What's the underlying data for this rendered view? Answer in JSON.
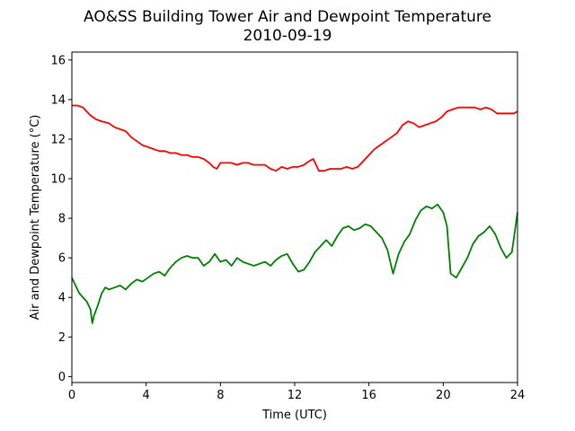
{
  "chart_data": {
    "type": "line",
    "title": "AO&SS Building Tower Air and Dewpoint Temperature",
    "subtitle": "2010-09-19",
    "xlabel": "Time (UTC)",
    "ylabel": "Air and Dewpoint Temperature (°C)",
    "xlim": [
      0,
      24
    ],
    "ylim": [
      -0.3,
      16.4
    ],
    "xticks": [
      0,
      4,
      8,
      12,
      16,
      20,
      24
    ],
    "yticks": [
      0,
      2,
      4,
      6,
      8,
      10,
      12,
      14,
      16
    ],
    "grid": false,
    "series": [
      {
        "color": "#ff0000",
        "x": [
          0,
          0.3,
          0.6,
          0.8,
          1.0,
          1.3,
          1.6,
          2.0,
          2.3,
          2.6,
          2.9,
          3.2,
          3.5,
          3.8,
          4.1,
          4.4,
          4.7,
          5.0,
          5.3,
          5.6,
          5.9,
          6.2,
          6.5,
          6.8,
          7.1,
          7.4,
          7.6,
          7.8,
          8.0,
          8.3,
          8.6,
          8.9,
          9.2,
          9.5,
          9.8,
          10.1,
          10.4,
          10.7,
          11.0,
          11.3,
          11.6,
          11.9,
          12.2,
          12.5,
          12.8,
          13.0,
          13.3,
          13.6,
          13.9,
          14.2,
          14.5,
          14.8,
          15.1,
          15.4,
          15.7,
          16.0,
          16.3,
          16.6,
          16.9,
          17.2,
          17.5,
          17.8,
          18.1,
          18.4,
          18.7,
          19.0,
          19.3,
          19.6,
          19.9,
          20.2,
          20.5,
          20.8,
          21.1,
          21.4,
          21.7,
          22.0,
          22.3,
          22.6,
          22.9,
          23.2,
          23.5,
          23.8,
          24.0
        ],
        "y": [
          13.7,
          13.7,
          13.6,
          13.4,
          13.2,
          13.0,
          12.9,
          12.8,
          12.6,
          12.5,
          12.4,
          12.1,
          11.9,
          11.7,
          11.6,
          11.5,
          11.4,
          11.4,
          11.3,
          11.3,
          11.2,
          11.2,
          11.1,
          11.1,
          11.0,
          10.8,
          10.6,
          10.5,
          10.8,
          10.8,
          10.8,
          10.7,
          10.8,
          10.8,
          10.7,
          10.7,
          10.7,
          10.5,
          10.4,
          10.6,
          10.5,
          10.6,
          10.6,
          10.7,
          10.9,
          11.0,
          10.4,
          10.4,
          10.5,
          10.5,
          10.5,
          10.6,
          10.5,
          10.6,
          10.9,
          11.2,
          11.5,
          11.7,
          11.9,
          12.1,
          12.3,
          12.7,
          12.9,
          12.8,
          12.6,
          12.7,
          12.8,
          12.9,
          13.1,
          13.4,
          13.5,
          13.6,
          13.6,
          13.6,
          13.6,
          13.5,
          13.6,
          13.5,
          13.3,
          13.3,
          13.3,
          13.3,
          13.4
        ]
      },
      {
        "color": "#008000",
        "x": [
          0,
          0.2,
          0.4,
          0.6,
          0.8,
          1.0,
          1.1,
          1.2,
          1.4,
          1.6,
          1.8,
          2.0,
          2.3,
          2.6,
          2.9,
          3.2,
          3.5,
          3.8,
          4.1,
          4.4,
          4.7,
          5.0,
          5.3,
          5.6,
          5.9,
          6.2,
          6.5,
          6.8,
          7.1,
          7.4,
          7.7,
          8.0,
          8.3,
          8.6,
          8.9,
          9.2,
          9.5,
          9.8,
          10.1,
          10.4,
          10.7,
          11.0,
          11.3,
          11.6,
          11.9,
          12.2,
          12.5,
          12.8,
          13.1,
          13.4,
          13.7,
          14.0,
          14.3,
          14.6,
          14.9,
          15.2,
          15.5,
          15.8,
          16.1,
          16.4,
          16.7,
          17.0,
          17.3,
          17.6,
          17.9,
          18.2,
          18.5,
          18.8,
          19.1,
          19.4,
          19.7,
          20.0,
          20.2,
          20.4,
          20.7,
          21.0,
          21.3,
          21.6,
          21.9,
          22.2,
          22.5,
          22.8,
          23.1,
          23.4,
          23.7,
          24.0
        ],
        "y": [
          5.0,
          4.6,
          4.2,
          4.0,
          3.8,
          3.4,
          2.7,
          3.1,
          3.6,
          4.2,
          4.5,
          4.4,
          4.5,
          4.6,
          4.4,
          4.7,
          4.9,
          4.8,
          5.0,
          5.2,
          5.3,
          5.1,
          5.5,
          5.8,
          6.0,
          6.1,
          6.0,
          6.0,
          5.6,
          5.8,
          6.2,
          5.8,
          5.9,
          5.6,
          6.0,
          5.8,
          5.7,
          5.6,
          5.7,
          5.8,
          5.6,
          5.9,
          6.1,
          6.2,
          5.7,
          5.3,
          5.4,
          5.8,
          6.3,
          6.6,
          6.9,
          6.6,
          7.1,
          7.5,
          7.6,
          7.4,
          7.5,
          7.7,
          7.6,
          7.3,
          7.0,
          6.4,
          5.2,
          6.2,
          6.8,
          7.2,
          7.9,
          8.4,
          8.6,
          8.5,
          8.7,
          8.3,
          7.6,
          5.2,
          5.0,
          5.5,
          6.0,
          6.7,
          7.1,
          7.3,
          7.6,
          7.2,
          6.5,
          6.0,
          6.3,
          8.3
        ]
      }
    ]
  }
}
